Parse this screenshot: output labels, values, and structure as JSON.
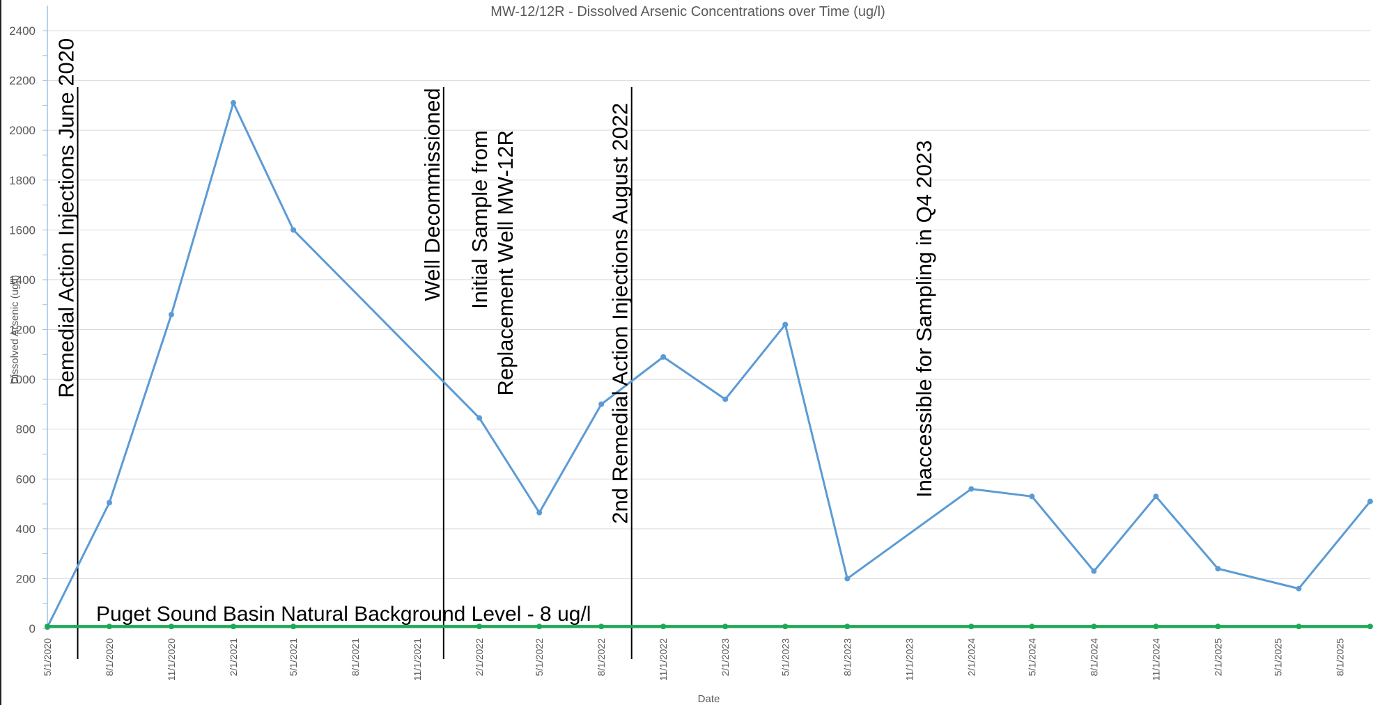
{
  "chart_data": {
    "type": "line",
    "title": "MW-12/12R - Dissolved Arsenic Concentrations over Time (ug/l)",
    "xlabel": "Date",
    "ylabel": "Dissolved Arsenic (ug/l)",
    "ylim": [
      0,
      2400
    ],
    "yticks": [
      0,
      200,
      400,
      600,
      800,
      1000,
      1200,
      1400,
      1600,
      1800,
      2000,
      2200,
      2400
    ],
    "xlim": [
      "2020-05-01",
      "2025-09-15"
    ],
    "xticks": [
      "5/1/2020",
      "8/1/2020",
      "11/1/2020",
      "2/1/2021",
      "5/1/2021",
      "8/1/2021",
      "11/1/2021",
      "2/1/2022",
      "5/1/2022",
      "8/1/2022",
      "11/1/2022",
      "2/1/2023",
      "5/1/2023",
      "8/1/2023",
      "11/1/2023",
      "2/1/2024",
      "5/1/2024",
      "8/1/2024",
      "11/1/2024",
      "2/1/2025",
      "5/1/2025",
      "8/1/2025"
    ],
    "grid": true,
    "colors": {
      "arsenic": "#5b9bd5",
      "background": "#1aaa55",
      "grid": "#d9d9d9",
      "axis": "#9dc3e6",
      "marker_line": "#000000"
    },
    "series": [
      {
        "key": "arsenic",
        "x": [
          "2020-05-01",
          "2020-08-01",
          "2020-11-01",
          "2021-02-01",
          "2021-05-01",
          "2022-02-01",
          "2022-05-01",
          "2022-08-01",
          "2022-11-01",
          "2023-02-01",
          "2023-05-01",
          "2023-08-01",
          "2024-02-01",
          "2024-05-01",
          "2024-08-01",
          "2024-11-01",
          "2025-02-01",
          "2025-06-01",
          "2025-09-15"
        ],
        "y": [
          5,
          505,
          1260,
          2110,
          1600,
          845,
          465,
          900,
          1090,
          920,
          1220,
          200,
          560,
          530,
          230,
          530,
          240,
          160,
          510
        ]
      },
      {
        "key": "background",
        "x": [
          "2020-05-01",
          "2020-08-01",
          "2020-11-01",
          "2021-02-01",
          "2021-05-01",
          "2022-02-01",
          "2022-05-01",
          "2022-08-01",
          "2022-11-01",
          "2023-02-01",
          "2023-05-01",
          "2023-08-01",
          "2024-02-01",
          "2024-05-01",
          "2024-08-01",
          "2024-11-01",
          "2025-02-01",
          "2025-06-01",
          "2025-09-15"
        ],
        "y": [
          8,
          8,
          8,
          8,
          8,
          8,
          8,
          8,
          8,
          8,
          8,
          8,
          8,
          8,
          8,
          8,
          8,
          8,
          8
        ]
      }
    ],
    "annotations": [
      {
        "date": "2020-06-15",
        "lines": [
          "Remedial Action Injections June 2020"
        ],
        "text_top": 2370
      },
      {
        "date": "2021-12-10",
        "lines": [
          "Well Decommissioned"
        ],
        "text_top": 2170
      },
      {
        "date": "2021-12-10",
        "lines": [
          "Initial Sample from",
          "Replacement Well MW-12R"
        ],
        "text_top": 2000,
        "side": "right"
      },
      {
        "date": "2022-09-15",
        "lines": [
          "2nd Remedial Action Injections    August 2022"
        ],
        "text_top": 2110
      },
      {
        "date": "",
        "lines": [
          "Inaccessible for Sampling in Q4 2023"
        ],
        "text_top": 1960,
        "text_date": "2023-12-10"
      }
    ],
    "background_label": "Puget Sound Basin Natural Background Level - 8 ug/l"
  }
}
